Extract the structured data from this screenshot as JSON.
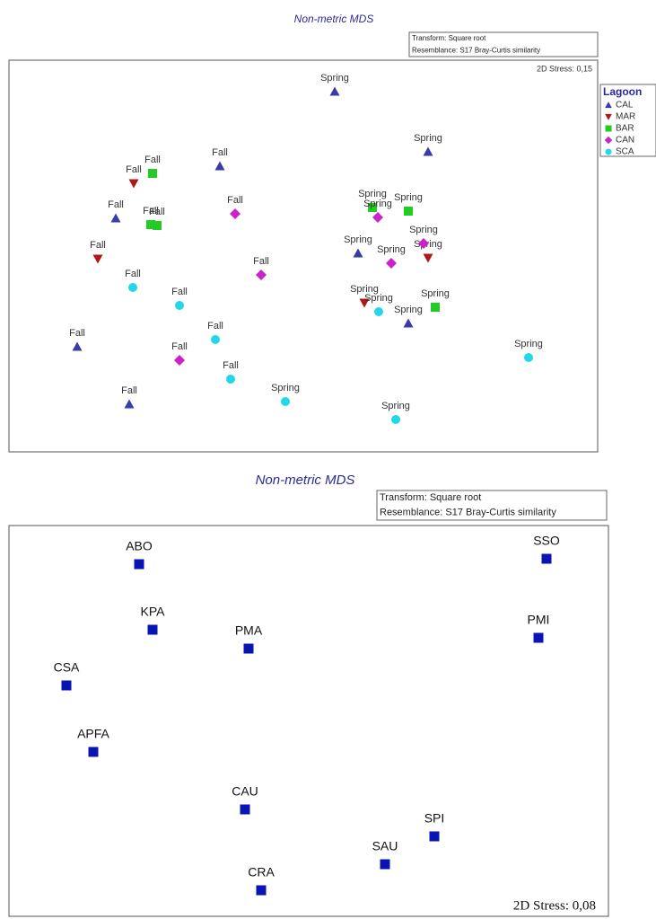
{
  "chart_data": [
    {
      "type": "scatter",
      "title": "Non-metric MDS",
      "annotation": [
        "Transform: Square root",
        "Resemblance: S17 Bray-Curtis similarity"
      ],
      "stress": "2D Stress: 0,15",
      "legend_title": "Lagoon",
      "legend": "right",
      "xlim": [
        0,
        656
      ],
      "ylim": [
        0,
        436
      ],
      "series": [
        {
          "name": "CAL",
          "color": "#3a3aa8",
          "marker": "triangle-up",
          "x": [
            363,
            467,
            235,
            119,
            389,
            445,
            76,
            134
          ],
          "y": [
            401,
            334,
            318,
            260,
            221,
            143,
            117,
            53
          ],
          "labels": [
            "Spring",
            "Spring",
            "Fall",
            "Fall",
            "Spring",
            "Spring",
            "Fall",
            "Fall"
          ]
        },
        {
          "name": "MAR",
          "color": "#b01818",
          "marker": "triangle-down",
          "x": [
            139,
            99,
            396,
            467
          ],
          "y": [
            299,
            215,
            166,
            216
          ],
          "labels": [
            "Fall",
            "Fall",
            "Spring",
            "Spring"
          ]
        },
        {
          "name": "BAR",
          "color": "#22cc22",
          "marker": "square",
          "x": [
            160,
            158,
            165,
            405,
            445,
            475
          ],
          "y": [
            310,
            253,
            252,
            272,
            268,
            161
          ],
          "labels": [
            "Fall",
            "Fall",
            "Fall",
            "Spring",
            "Spring",
            "Spring"
          ]
        },
        {
          "name": "CAN",
          "color": "#cc22cc",
          "marker": "diamond",
          "x": [
            252,
            281,
            190,
            411,
            426,
            462
          ],
          "y": [
            265,
            197,
            102,
            261,
            210,
            232
          ],
          "labels": [
            "Fall",
            "Fall",
            "Fall",
            "Spring",
            "Spring",
            "Spring"
          ]
        },
        {
          "name": "SCA",
          "color": "#22d8e8",
          "marker": "circle",
          "x": [
            138,
            190,
            230,
            247,
            308,
            412,
            431,
            579
          ],
          "y": [
            183,
            163,
            125,
            81,
            56,
            156,
            36,
            105
          ],
          "labels": [
            "Fall",
            "Fall",
            "Fall",
            "Fall",
            "Spring",
            "Spring",
            "Spring",
            "Spring"
          ]
        }
      ]
    },
    {
      "type": "scatter",
      "title": "Non-metric MDS",
      "annotation": [
        "Transform: Square root",
        "Resemblance: S17 Bray-Curtis similarity"
      ],
      "stress": "2D Stress: 0,08",
      "xlim": [
        0,
        668
      ],
      "ylim": [
        0,
        435
      ],
      "series": [
        {
          "color": "#0a14b4",
          "marker": "square",
          "x": [
            145,
            599,
            160,
            267,
            590,
            64,
            94,
            263,
            474,
            419,
            281
          ],
          "y": [
            392,
            398,
            319,
            298,
            310,
            257,
            183,
            119,
            89,
            58,
            29
          ],
          "labels": [
            "ABO",
            "SSO",
            "KPA",
            "PMA",
            "PMI",
            "CSA",
            "APFA",
            "CAU",
            "SPI",
            "SAU",
            "CRA"
          ]
        }
      ]
    }
  ]
}
